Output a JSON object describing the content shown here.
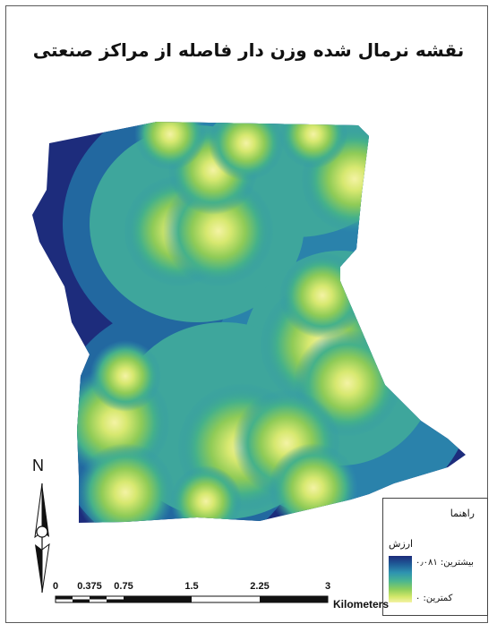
{
  "title": "نقشه نرمال شده وزن دار فاصله از مراکز صنعتی",
  "north_label": "N",
  "legend": {
    "title": "راهنما",
    "field": "ارزش",
    "max_label": "بیشترین: ۰٫۰۸۱",
    "min_label": "کمترین: ۰"
  },
  "scale": {
    "ticks": [
      "0",
      "0.375",
      "0.75",
      "1.5",
      "2.25",
      "3"
    ],
    "unit": "Kilometers"
  },
  "colors": {
    "low_value": "#1c2a7a",
    "mid_value": "#2e93b0",
    "high_value": "#f4f3a4"
  }
}
